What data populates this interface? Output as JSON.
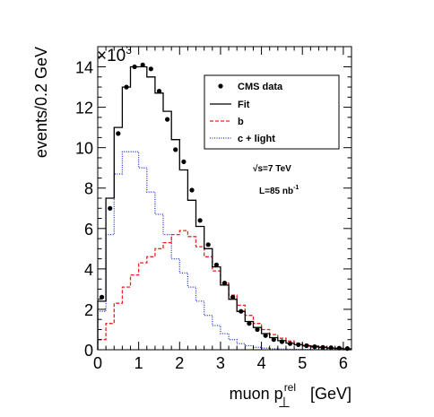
{
  "chart_data": {
    "type": "line",
    "subtype": "step-histogram",
    "bin_width": 0.2,
    "xlim": [
      0,
      6.2
    ],
    "ylim": [
      0,
      15000
    ],
    "y_multiplier_label": "×10",
    "y_multiplier_exponent": "3",
    "xticks": [
      0,
      1,
      2,
      3,
      4,
      5,
      6
    ],
    "yticks": [
      0,
      2,
      4,
      6,
      8,
      10,
      12,
      14
    ],
    "xlabel_main": "muon p",
    "xlabel_sup": "rel",
    "xlabel_sub": "⊥",
    "xlabel_unit": "[GeV]",
    "ylabel": "events/0.2 GeV",
    "legend_position": "top-right",
    "annotation_energy": "√s=7 TeV",
    "annotation_lumi_main": "L=85 nb",
    "annotation_lumi_sup": "-1",
    "series": [
      {
        "name": "CMS data",
        "style": "points",
        "color": "#000000",
        "values": [
          2600,
          7000,
          10700,
          13000,
          14000,
          14100,
          13900,
          12800,
          11400,
          9900,
          9300,
          7900,
          6400,
          5200,
          4200,
          3300,
          2600,
          1900,
          1300,
          1000,
          700,
          500,
          400,
          300,
          250,
          200,
          150,
          120,
          100,
          80,
          60
        ]
      },
      {
        "name": "Fit",
        "style": "step",
        "color": "#000000",
        "values": [
          2400,
          7500,
          11000,
          13000,
          14000,
          14000,
          13500,
          12700,
          11800,
          10400,
          8900,
          7400,
          6100,
          5000,
          4100,
          3200,
          2500,
          1900,
          1400,
          1100,
          800,
          600,
          450,
          330,
          250,
          190,
          140,
          110,
          80,
          60,
          40
        ]
      },
      {
        "name": "b",
        "style": "step-dashed",
        "color": "#ee2222",
        "values": [
          500,
          1300,
          2300,
          3100,
          3700,
          4300,
          4600,
          5000,
          5300,
          5700,
          5900,
          5600,
          5100,
          4600,
          3900,
          3300,
          2700,
          2200,
          1700,
          1300,
          1000,
          750,
          570,
          430,
          330,
          250,
          190,
          140,
          100,
          80,
          60
        ]
      },
      {
        "name": "c + light",
        "style": "step-dotted",
        "color": "#2233cc",
        "values": [
          1900,
          5700,
          8700,
          9800,
          9800,
          9000,
          7800,
          6700,
          5700,
          4500,
          3800,
          3100,
          2400,
          1700,
          1200,
          800,
          500,
          300,
          200,
          120,
          80,
          50,
          30,
          20,
          15,
          10,
          8,
          6,
          4,
          3,
          2
        ]
      }
    ]
  }
}
